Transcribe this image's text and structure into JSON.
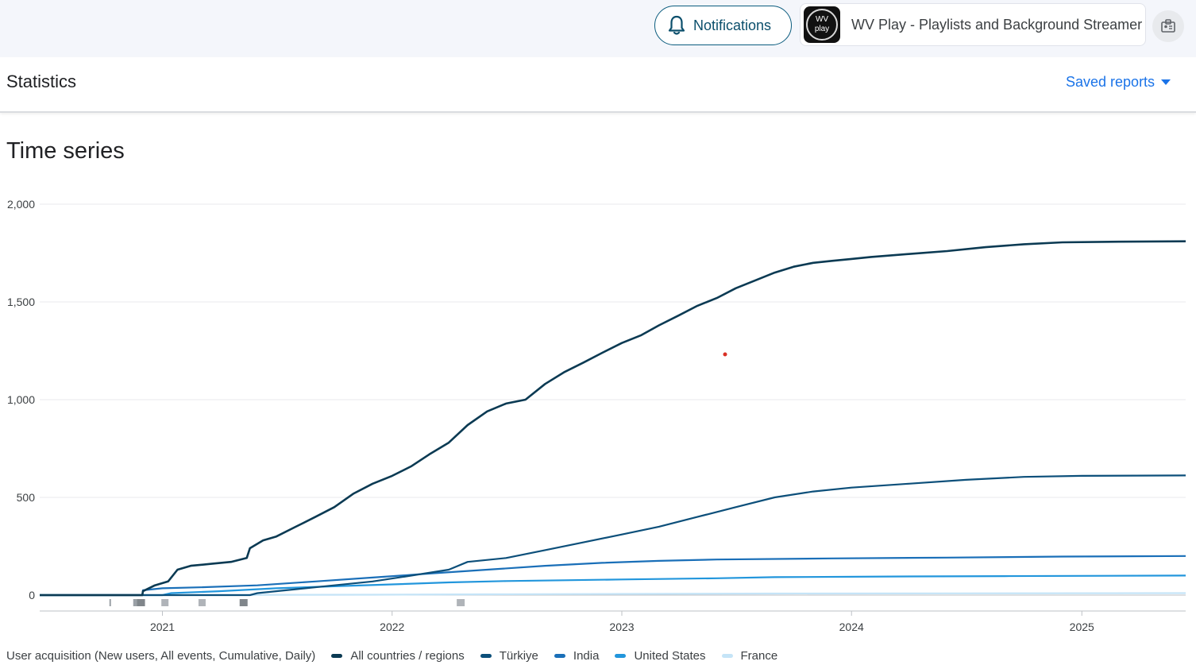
{
  "header": {
    "notifications_label": "Notifications",
    "app_logo_top": "WV",
    "app_logo_bottom": "play",
    "app_name": "WV Play - Playlists and Background Streamer"
  },
  "section": {
    "title": "Statistics",
    "saved_reports_label": "Saved reports"
  },
  "chart_title": "Time series",
  "legend": {
    "description": "User acquisition (New users, All events, Cumulative, Daily)"
  },
  "chart_data": {
    "type": "line",
    "title": "Time series",
    "xlabel": "",
    "ylabel": "",
    "x_tick_labels": [
      "2021",
      "2022",
      "2023",
      "2024",
      "2025"
    ],
    "y_tick_labels": [
      "0",
      "500",
      "1,000",
      "1,500",
      "2,000"
    ],
    "ylim": [
      0,
      2000
    ],
    "xlim": [
      "2020-06-20",
      "2025-06-15"
    ],
    "grid": true,
    "legend_position": "bottom-left",
    "series": [
      {
        "name": "All countries / regions",
        "color": "#0b3a53",
        "points": [
          [
            "2020-06-20",
            0
          ],
          [
            "2020-11-30",
            0
          ],
          [
            "2020-12-01",
            20
          ],
          [
            "2020-12-20",
            50
          ],
          [
            "2021-01-10",
            70
          ],
          [
            "2021-01-25",
            130
          ],
          [
            "2021-02-15",
            150
          ],
          [
            "2021-03-20",
            160
          ],
          [
            "2021-04-20",
            170
          ],
          [
            "2021-05-15",
            190
          ],
          [
            "2021-05-20",
            240
          ],
          [
            "2021-06-10",
            280
          ],
          [
            "2021-07-01",
            300
          ],
          [
            "2021-08-01",
            350
          ],
          [
            "2021-09-01",
            400
          ],
          [
            "2021-10-01",
            450
          ],
          [
            "2021-11-01",
            520
          ],
          [
            "2021-12-01",
            570
          ],
          [
            "2022-01-01",
            610
          ],
          [
            "2022-02-01",
            660
          ],
          [
            "2022-03-01",
            720
          ],
          [
            "2022-04-01",
            780
          ],
          [
            "2022-05-01",
            870
          ],
          [
            "2022-06-01",
            940
          ],
          [
            "2022-07-01",
            980
          ],
          [
            "2022-08-01",
            1000
          ],
          [
            "2022-09-01",
            1080
          ],
          [
            "2022-10-01",
            1140
          ],
          [
            "2022-11-01",
            1190
          ],
          [
            "2022-12-01",
            1240
          ],
          [
            "2023-01-01",
            1290
          ],
          [
            "2023-02-01",
            1330
          ],
          [
            "2023-03-01",
            1380
          ],
          [
            "2023-04-01",
            1430
          ],
          [
            "2023-05-01",
            1480
          ],
          [
            "2023-06-01",
            1520
          ],
          [
            "2023-07-01",
            1570
          ],
          [
            "2023-08-01",
            1610
          ],
          [
            "2023-09-01",
            1650
          ],
          [
            "2023-10-01",
            1680
          ],
          [
            "2023-11-01",
            1700
          ],
          [
            "2023-12-01",
            1710
          ],
          [
            "2024-01-01",
            1720
          ],
          [
            "2024-02-01",
            1730
          ],
          [
            "2024-04-01",
            1745
          ],
          [
            "2024-06-01",
            1760
          ],
          [
            "2024-08-01",
            1780
          ],
          [
            "2024-10-01",
            1795
          ],
          [
            "2024-12-01",
            1805
          ],
          [
            "2025-03-01",
            1808
          ],
          [
            "2025-06-15",
            1810
          ]
        ]
      },
      {
        "name": "Türkiye",
        "color": "#0c4f7a",
        "points": [
          [
            "2020-06-20",
            0
          ],
          [
            "2021-05-20",
            0
          ],
          [
            "2021-06-01",
            10
          ],
          [
            "2021-08-01",
            30
          ],
          [
            "2021-10-01",
            50
          ],
          [
            "2021-12-01",
            70
          ],
          [
            "2022-02-01",
            100
          ],
          [
            "2022-04-01",
            130
          ],
          [
            "2022-05-01",
            170
          ],
          [
            "2022-07-01",
            190
          ],
          [
            "2022-09-01",
            230
          ],
          [
            "2022-11-01",
            270
          ],
          [
            "2023-01-01",
            310
          ],
          [
            "2023-03-01",
            350
          ],
          [
            "2023-05-01",
            400
          ],
          [
            "2023-07-01",
            450
          ],
          [
            "2023-09-01",
            500
          ],
          [
            "2023-11-01",
            530
          ],
          [
            "2024-01-01",
            550
          ],
          [
            "2024-04-01",
            570
          ],
          [
            "2024-07-01",
            590
          ],
          [
            "2024-10-01",
            605
          ],
          [
            "2025-01-01",
            610
          ],
          [
            "2025-06-15",
            612
          ]
        ]
      },
      {
        "name": "India",
        "color": "#1a6fb8",
        "points": [
          [
            "2020-06-20",
            0
          ],
          [
            "2020-11-30",
            0
          ],
          [
            "2020-12-01",
            25
          ],
          [
            "2021-01-01",
            35
          ],
          [
            "2021-03-01",
            40
          ],
          [
            "2021-06-01",
            50
          ],
          [
            "2021-09-01",
            70
          ],
          [
            "2021-12-01",
            90
          ],
          [
            "2022-03-01",
            110
          ],
          [
            "2022-06-01",
            130
          ],
          [
            "2022-09-01",
            150
          ],
          [
            "2022-12-01",
            165
          ],
          [
            "2023-03-01",
            175
          ],
          [
            "2023-06-01",
            182
          ],
          [
            "2023-12-01",
            188
          ],
          [
            "2024-06-01",
            192
          ],
          [
            "2024-12-01",
            197
          ],
          [
            "2025-06-15",
            200
          ]
        ]
      },
      {
        "name": "United States",
        "color": "#2296dc",
        "points": [
          [
            "2020-06-20",
            0
          ],
          [
            "2021-01-01",
            0
          ],
          [
            "2021-01-15",
            10
          ],
          [
            "2021-04-01",
            20
          ],
          [
            "2021-07-01",
            35
          ],
          [
            "2021-10-01",
            45
          ],
          [
            "2022-01-01",
            55
          ],
          [
            "2022-04-01",
            65
          ],
          [
            "2022-07-01",
            72
          ],
          [
            "2022-10-01",
            76
          ],
          [
            "2023-01-01",
            80
          ],
          [
            "2023-06-01",
            86
          ],
          [
            "2023-09-01",
            92
          ],
          [
            "2024-03-01",
            95
          ],
          [
            "2024-09-01",
            97
          ],
          [
            "2025-06-15",
            100
          ]
        ]
      },
      {
        "name": "France",
        "color": "#c5e4f7",
        "points": [
          [
            "2020-06-20",
            0
          ],
          [
            "2021-12-01",
            2
          ],
          [
            "2022-06-01",
            4
          ],
          [
            "2023-01-01",
            6
          ],
          [
            "2023-09-01",
            8
          ],
          [
            "2024-06-01",
            9
          ],
          [
            "2025-06-15",
            10
          ]
        ]
      }
    ]
  }
}
